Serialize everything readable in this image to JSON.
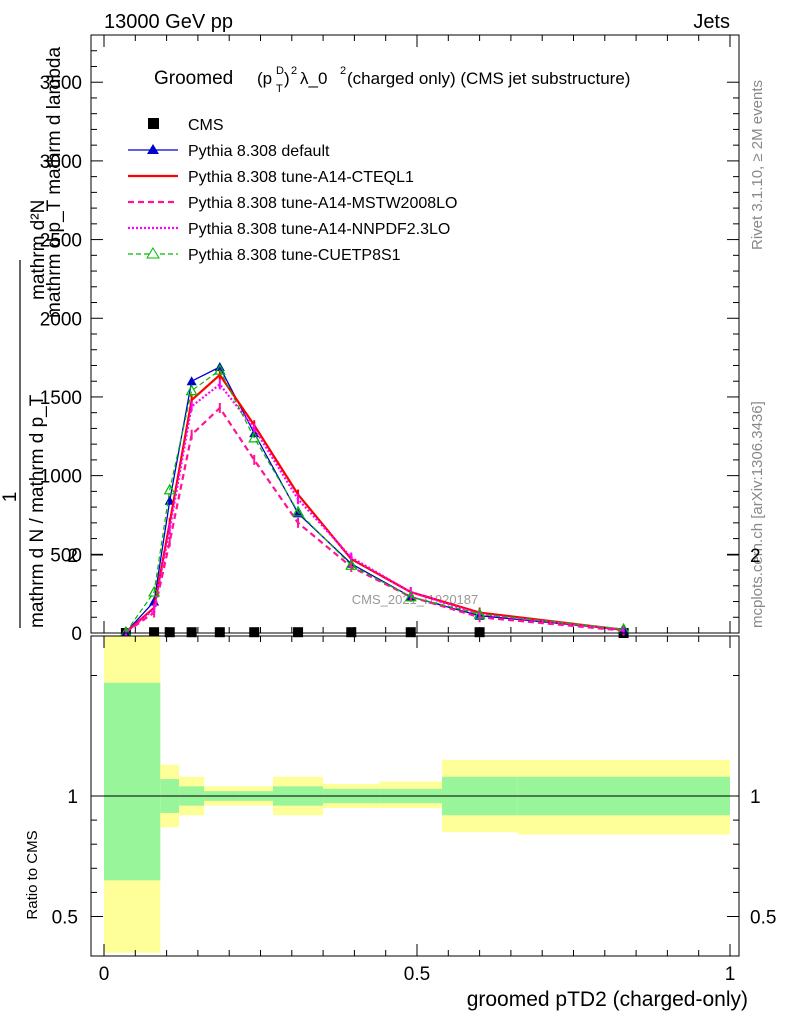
{
  "header": {
    "left": "13000 GeV pp",
    "right": "Jets"
  },
  "title": {
    "main": "Groomed",
    "expr_p": "(p",
    "expr_sub": "T",
    "expr_sup": "D",
    "expr_close": ")",
    "expr_pow": "2",
    "expr_lambda": "λ_0",
    "expr_pow2": "2",
    "rest": " (charged only) (CMS jet substructure)"
  },
  "side_labels": {
    "rivet": "Rivet 3.1.10, ≥ 2M events",
    "mcplots": "mcplots.cern.ch [arXiv:1306.3436]"
  },
  "watermark": "CMS_2021_I1920187",
  "colors": {
    "cms": "#000000",
    "default": "#0000cc",
    "a14_cteql1": "#ff0000",
    "a14_mstw": "#ff1493",
    "a14_nnpdf": "#ff00ff",
    "cuetp8s1": "#00bb00",
    "band_inner": "#99f599",
    "band_outer": "#ffff99"
  },
  "chart_data": [
    {
      "type": "line",
      "role": "main",
      "ylabel_lines": [
        "1",
        "mathrm d N / mathrm d p_T mathrm d ...",
        "mathrm d N",
        "mathrm d p_T mathrm d lambda"
      ],
      "ylabel_num": "mathrm d²N",
      "ylabel_den": "mathrm d p_T mathrm d lambda",
      "ylabel_pre": "1",
      "ylabel_frac_den": "mathrm d N / mathrm d p_T",
      "xlim": [
        -0.02,
        1.0
      ],
      "ylim": [
        0,
        3800
      ],
      "yticks": [
        0,
        500,
        1000,
        1500,
        2000,
        2500,
        3000,
        3500
      ],
      "ytick_labels": [
        "0",
        "500",
        "1000",
        "1500",
        "2000",
        "2500",
        "3000",
        "3500"
      ],
      "series": [
        {
          "name": "CMS",
          "style": "cms",
          "x": [
            0.035,
            0.08,
            0.105,
            0.14,
            0.185,
            0.24,
            0.31,
            0.395,
            0.49,
            0.6,
            0.83
          ],
          "y": [
            0,
            5,
            5,
            5,
            5,
            5,
            5,
            5,
            5,
            5,
            0
          ]
        },
        {
          "name": "Pythia 8.308 default",
          "style": "default",
          "x": [
            0.035,
            0.08,
            0.105,
            0.14,
            0.185,
            0.24,
            0.31,
            0.395,
            0.49,
            0.6,
            0.83
          ],
          "y": [
            5,
            200,
            840,
            1600,
            1690,
            1270,
            760,
            440,
            230,
            110,
            20
          ]
        },
        {
          "name": "Pythia 8.308 tune-A14-CTEQL1",
          "style": "a14_cteql1",
          "x": [
            0.035,
            0.08,
            0.105,
            0.14,
            0.185,
            0.24,
            0.31,
            0.395,
            0.49,
            0.6,
            0.83
          ],
          "y": [
            5,
            160,
            700,
            1480,
            1640,
            1320,
            880,
            470,
            260,
            130,
            20
          ]
        },
        {
          "name": "Pythia 8.308 tune-A14-MSTW2008LO",
          "style": "a14_mstw",
          "x": [
            0.035,
            0.08,
            0.105,
            0.14,
            0.185,
            0.24,
            0.31,
            0.395,
            0.49,
            0.6,
            0.83
          ],
          "y": [
            5,
            130,
            580,
            1260,
            1430,
            1100,
            700,
            420,
            230,
            100,
            15
          ]
        },
        {
          "name": "Pythia 8.308 tune-A14-NNPDF2.3LO",
          "style": "a14_nnpdf",
          "x": [
            0.035,
            0.08,
            0.105,
            0.14,
            0.185,
            0.24,
            0.31,
            0.395,
            0.49,
            0.6,
            0.83
          ],
          "y": [
            5,
            150,
            660,
            1440,
            1580,
            1300,
            850,
            480,
            260,
            120,
            20
          ]
        },
        {
          "name": "Pythia 8.308 tune-CUETP8S1",
          "style": "cuetp8s1",
          "x": [
            0.035,
            0.08,
            0.105,
            0.14,
            0.185,
            0.24,
            0.31,
            0.395,
            0.49,
            0.6,
            0.83
          ],
          "y": [
            5,
            260,
            910,
            1540,
            1670,
            1240,
            770,
            430,
            230,
            120,
            25
          ]
        }
      ]
    },
    {
      "type": "area",
      "role": "ratio",
      "xlabel": "groomed pTD2 (charged-only)",
      "ylabel": "Ratio to CMS",
      "xlim": [
        -0.02,
        1.0
      ],
      "ylim": [
        0.35,
        2.35
      ],
      "xticks": [
        0,
        0.5,
        1
      ],
      "xtick_labels": [
        "0",
        "0.5",
        "1"
      ],
      "yticks": [
        0.5,
        1,
        2
      ],
      "ytick_labels": [
        "0.5",
        "1",
        "2"
      ],
      "bins": [
        {
          "x0": 0.0,
          "x1": 0.09,
          "inner": [
            0.65,
            1.47
          ],
          "outer": [
            0.35,
            1.82
          ]
        },
        {
          "x0": 0.09,
          "x1": 0.12,
          "inner": [
            0.93,
            1.07
          ],
          "outer": [
            0.87,
            1.13
          ]
        },
        {
          "x0": 0.12,
          "x1": 0.16,
          "inner": [
            0.96,
            1.04
          ],
          "outer": [
            0.92,
            1.08
          ]
        },
        {
          "x0": 0.16,
          "x1": 0.215,
          "inner": [
            0.98,
            1.02
          ],
          "outer": [
            0.96,
            1.04
          ]
        },
        {
          "x0": 0.215,
          "x1": 0.27,
          "inner": [
            0.98,
            1.02
          ],
          "outer": [
            0.96,
            1.04
          ]
        },
        {
          "x0": 0.27,
          "x1": 0.35,
          "inner": [
            0.96,
            1.04
          ],
          "outer": [
            0.92,
            1.08
          ]
        },
        {
          "x0": 0.35,
          "x1": 0.44,
          "inner": [
            0.97,
            1.03
          ],
          "outer": [
            0.95,
            1.05
          ]
        },
        {
          "x0": 0.44,
          "x1": 0.54,
          "inner": [
            0.97,
            1.03
          ],
          "outer": [
            0.95,
            1.06
          ]
        },
        {
          "x0": 0.54,
          "x1": 0.66,
          "inner": [
            0.92,
            1.08
          ],
          "outer": [
            0.85,
            1.15
          ]
        },
        {
          "x0": 0.66,
          "x1": 1.0,
          "inner": [
            0.92,
            1.08
          ],
          "outer": [
            0.84,
            1.15
          ]
        }
      ]
    }
  ]
}
